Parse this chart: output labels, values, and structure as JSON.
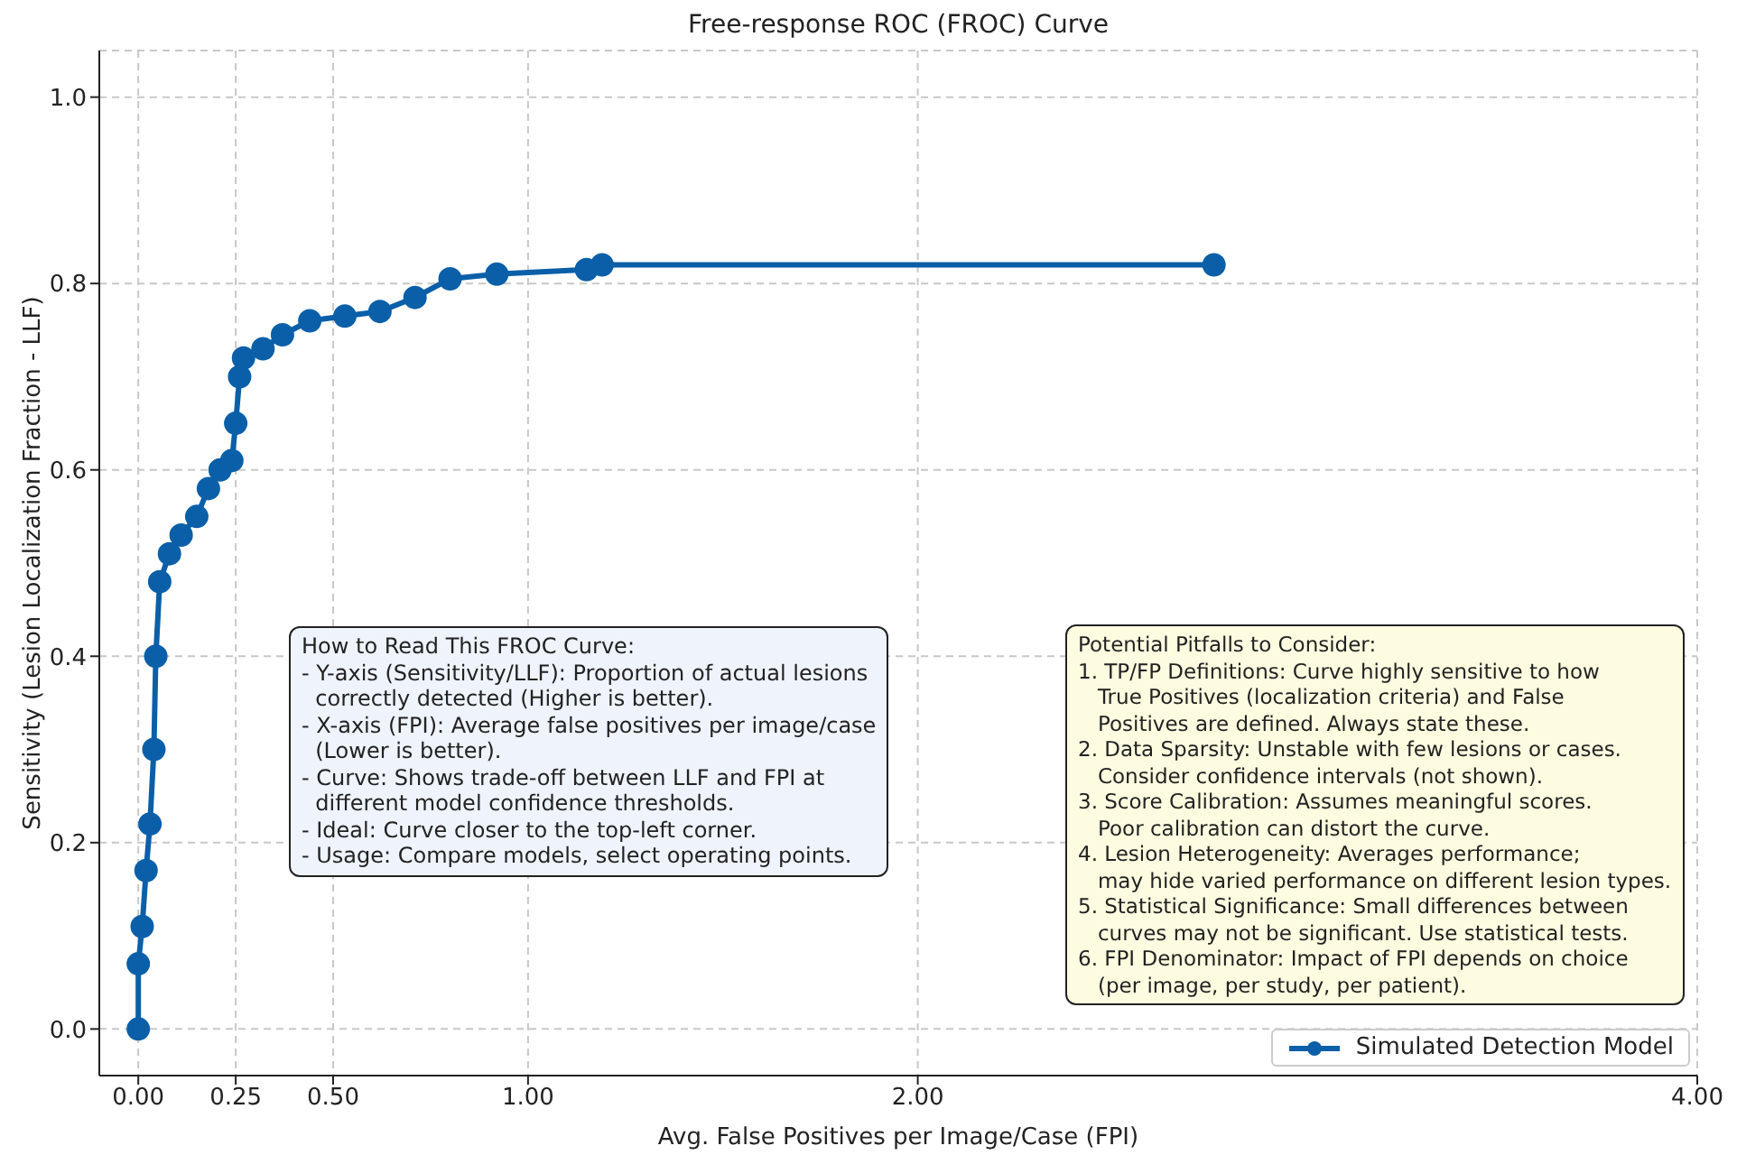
{
  "chart_data": {
    "type": "line",
    "title": "Free-response ROC (FROC) Curve",
    "xlabel": "Avg. False Positives per Image/Case (FPI)",
    "ylabel": "Sensitivity (Lesion Localization Fraction - LLF)",
    "x": [
      0,
      0,
      0.01,
      0.02,
      0.03,
      0.04,
      0.045,
      0.055,
      0.08,
      0.11,
      0.15,
      0.18,
      0.21,
      0.24,
      0.25,
      0.26,
      0.27,
      0.32,
      0.37,
      0.44,
      0.53,
      0.62,
      0.71,
      0.8,
      0.92,
      1.15,
      1.19,
      2.76
    ],
    "series": [
      {
        "name": "Simulated Detection Model",
        "color": "#0a5fa8",
        "values": [
          0,
          0.07,
          0.11,
          0.17,
          0.22,
          0.3,
          0.4,
          0.48,
          0.51,
          0.53,
          0.55,
          0.58,
          0.6,
          0.61,
          0.65,
          0.7,
          0.72,
          0.73,
          0.745,
          0.76,
          0.765,
          0.77,
          0.785,
          0.805,
          0.81,
          0.815,
          0.82,
          0.82
        ]
      }
    ],
    "xlim": [
      -0.1,
      4.0
    ],
    "ylim": [
      -0.05,
      1.05
    ],
    "xticks": [
      {
        "value": 0,
        "label": "0.00"
      },
      {
        "value": 0.25,
        "label": "0.25"
      },
      {
        "value": 0.5,
        "label": "0.50"
      },
      {
        "value": 1,
        "label": "1.00"
      },
      {
        "value": 2,
        "label": "2.00"
      },
      {
        "value": 4,
        "label": "4.00"
      }
    ],
    "yticks": [
      {
        "value": 0,
        "label": "0.0"
      },
      {
        "value": 0.2,
        "label": "0.2"
      },
      {
        "value": 0.4,
        "label": "0.4"
      },
      {
        "value": 0.6,
        "label": "0.6"
      },
      {
        "value": 0.8,
        "label": "0.8"
      },
      {
        "value": 1,
        "label": "1.0"
      }
    ],
    "grid": true,
    "legend": "bottom right",
    "marker": "circle",
    "line_style": "solid",
    "annotations": [
      "How to Read This FROC Curve:\n- Y-axis (Sensitivity/LLF): Proportion of actual lesions\n  correctly detected (Higher is better).\n- X-axis (FPI): Average false positives per image/case\n  (Lower is better).\n- Curve: Shows trade-off between LLF and FPI at\n  different model confidence thresholds.\n- Ideal: Curve closer to the top-left corner.\n- Usage: Compare models, select operating points.",
      "Potential Pitfalls to Consider:\n1. TP/FP Definitions: Curve highly sensitive to how\n   True Positives (localization criteria) and False\n   Positives are defined. Always state these.\n2. Data Sparsity: Unstable with few lesions or cases.\n   Consider confidence intervals (not shown).\n3. Score Calibration: Assumes meaningful scores.\n   Poor calibration can distort the curve.\n4. Lesion Heterogeneity: Averages performance;\n   may hide varied performance on different lesion types.\n5. Statistical Significance: Small differences between\n   curves may not be significant. Use statistical tests.\n6. FPI Denominator: Impact of FPI depends on choice\n   (per image, per study, per patient)."
    ]
  }
}
